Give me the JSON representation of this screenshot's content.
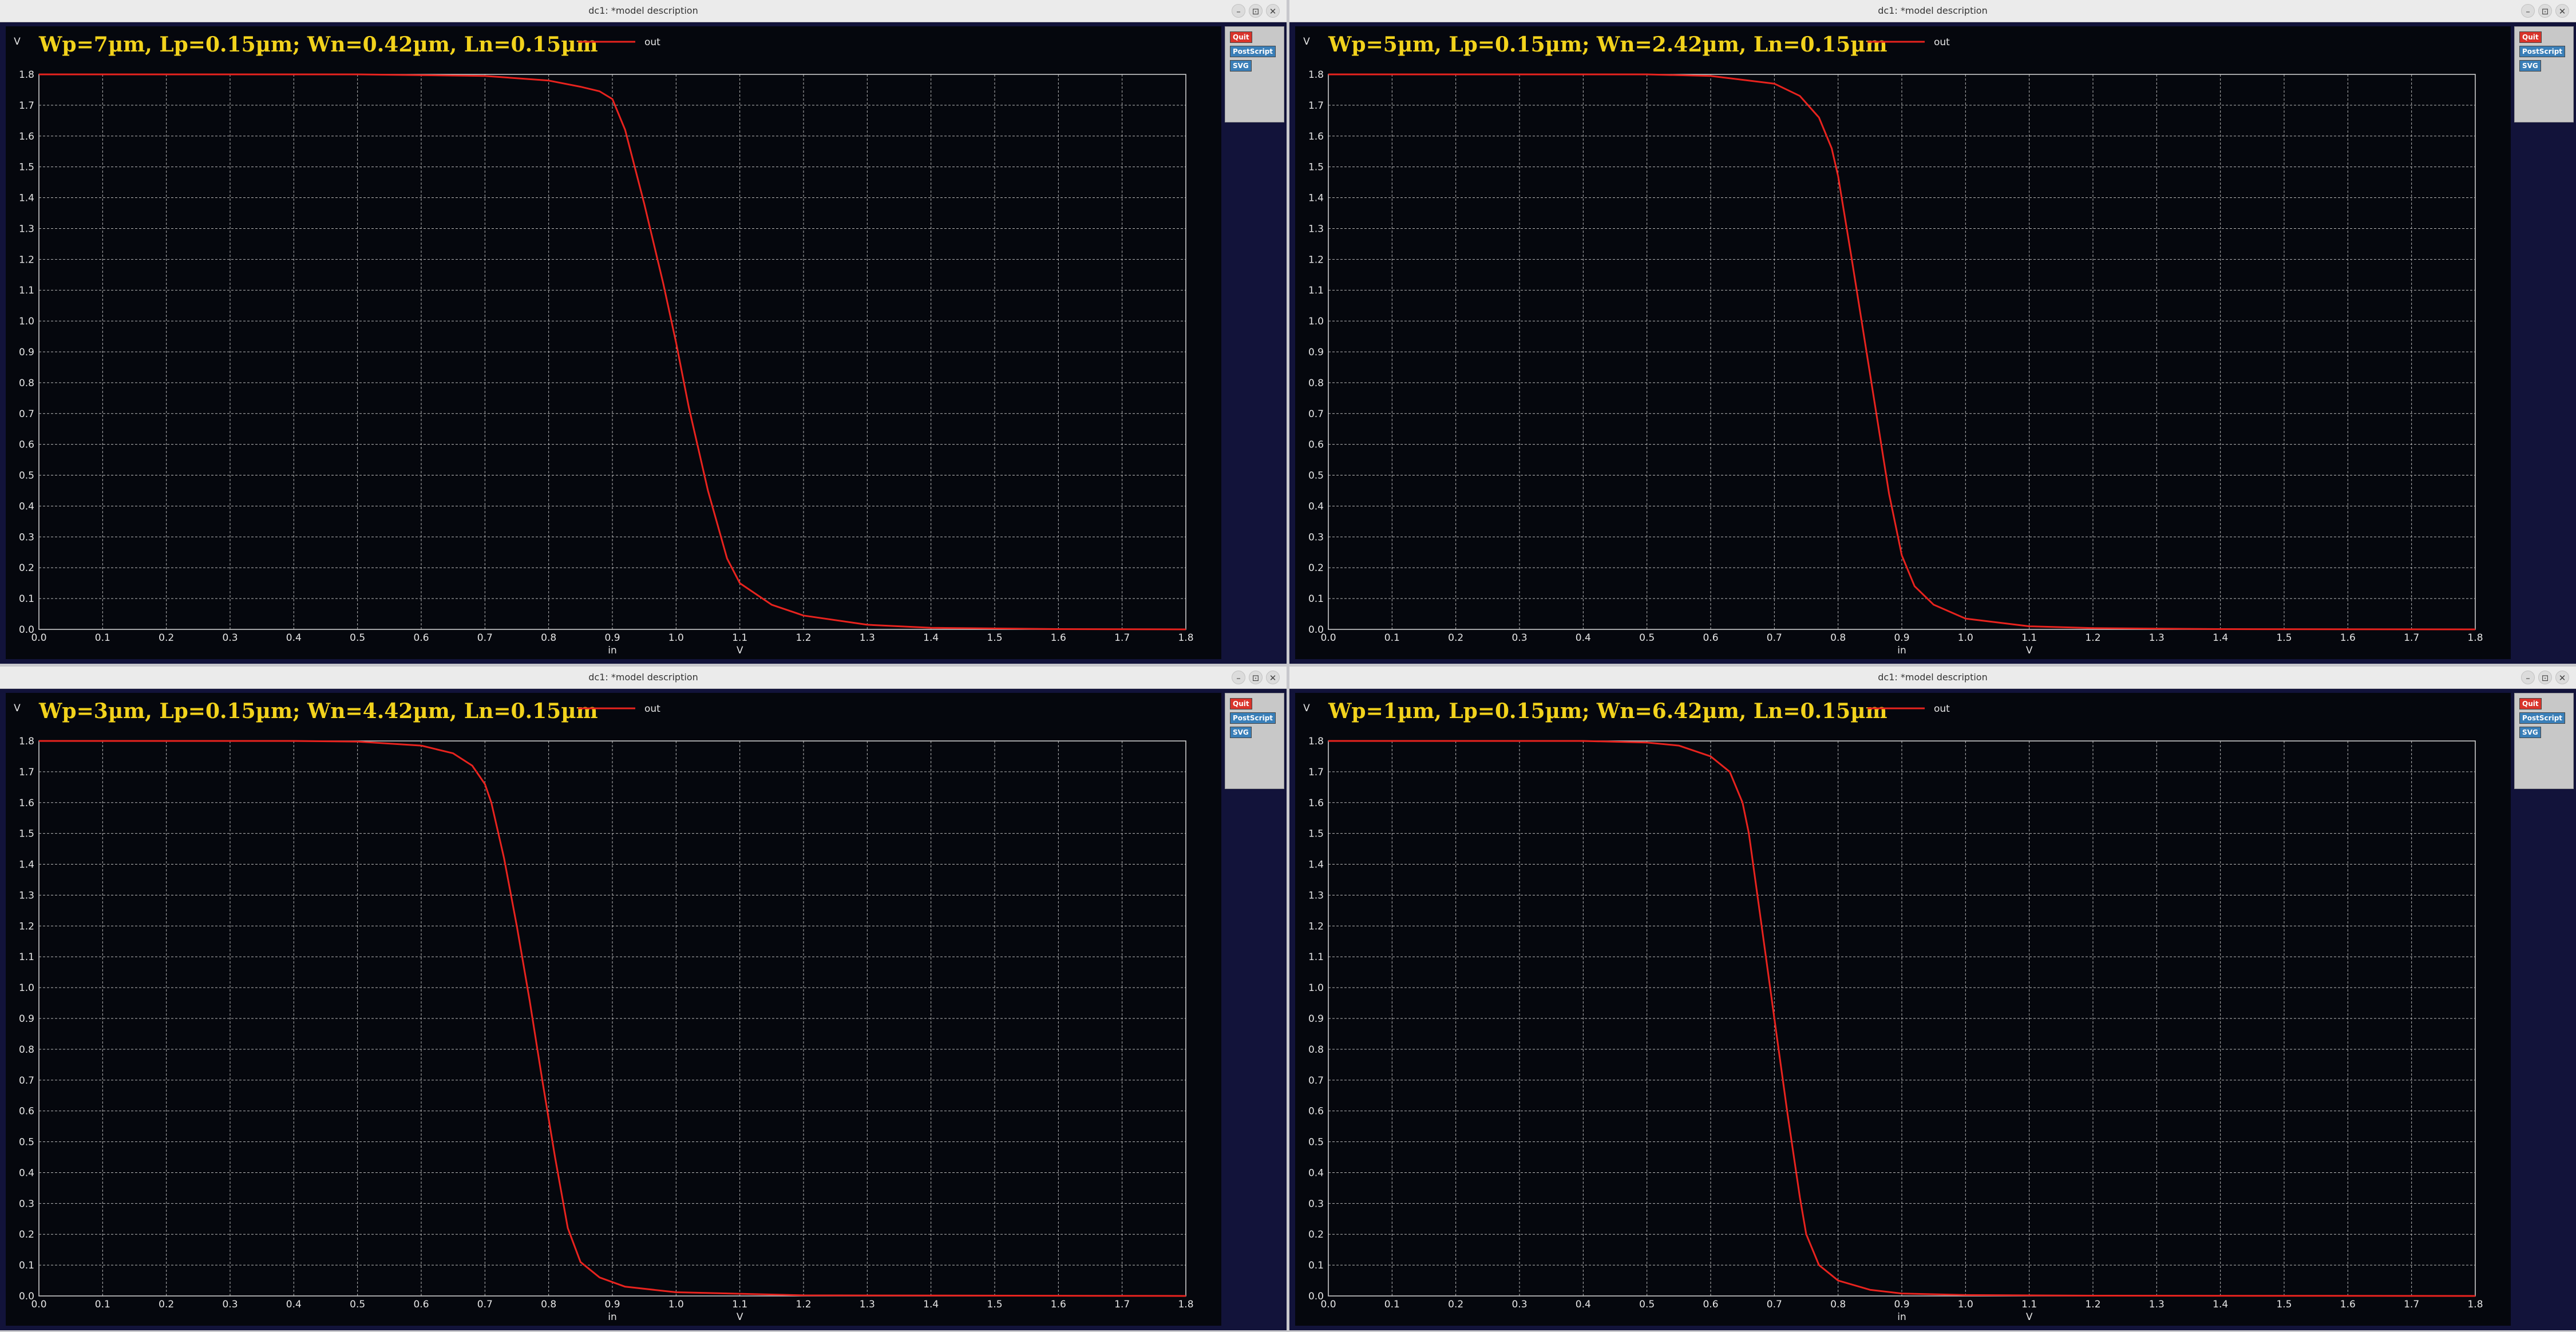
{
  "windows": [
    {
      "window_title": "dc1: *model description",
      "buttons": {
        "quit": "Quit",
        "postscript": "PostScript",
        "svg": "SVG"
      },
      "controls": {
        "minimize": "–",
        "maximize": "⊡",
        "close": "✕"
      },
      "chart_data": {
        "type": "line",
        "title": "Wp=7µm, Lp=0.15µm; Wn=0.42µm, Ln=0.15µm",
        "xlabel": "in",
        "xunit": "V",
        "yunit": "V",
        "xlim": [
          0,
          1.8
        ],
        "ylim": [
          0,
          1.8
        ],
        "xticks": [
          "0.0",
          "0.1",
          "0.2",
          "0.3",
          "0.4",
          "0.5",
          "0.6",
          "0.7",
          "0.8",
          "0.9",
          "1.0",
          "1.1",
          "1.2",
          "1.3",
          "1.4",
          "1.5",
          "1.6",
          "1.7",
          "1.8"
        ],
        "yticks": [
          "0.0",
          "0.1",
          "0.2",
          "0.3",
          "0.4",
          "0.5",
          "0.6",
          "0.7",
          "0.8",
          "0.9",
          "1.0",
          "1.1",
          "1.2",
          "1.3",
          "1.4",
          "1.5",
          "1.6",
          "1.7",
          "1.8"
        ],
        "grid": true,
        "legend_position": "top-center",
        "series": [
          {
            "name": "out",
            "color": "#e8231e",
            "x": [
              0.0,
              0.5,
              0.7,
              0.8,
              0.85,
              0.88,
              0.9,
              0.92,
              0.95,
              0.98,
              1.0,
              1.02,
              1.05,
              1.08,
              1.1,
              1.15,
              1.2,
              1.3,
              1.4,
              1.6,
              1.8
            ],
            "y": [
              1.8,
              1.8,
              1.795,
              1.78,
              1.76,
              1.745,
              1.72,
              1.62,
              1.38,
              1.12,
              0.93,
              0.72,
              0.45,
              0.23,
              0.15,
              0.08,
              0.045,
              0.015,
              0.005,
              0.001,
              0.0
            ]
          }
        ]
      }
    },
    {
      "window_title": "dc1: *model description",
      "buttons": {
        "quit": "Quit",
        "postscript": "PostScript",
        "svg": "SVG"
      },
      "controls": {
        "minimize": "–",
        "maximize": "⊡",
        "close": "✕"
      },
      "chart_data": {
        "type": "line",
        "title": "Wp=5µm, Lp=0.15µm; Wn=2.42µm, Ln=0.15µm",
        "xlabel": "in",
        "xunit": "V",
        "yunit": "V",
        "xlim": [
          0,
          1.8
        ],
        "ylim": [
          0,
          1.8
        ],
        "xticks": [
          "0.0",
          "0.1",
          "0.2",
          "0.3",
          "0.4",
          "0.5",
          "0.6",
          "0.7",
          "0.8",
          "0.9",
          "1.0",
          "1.1",
          "1.2",
          "1.3",
          "1.4",
          "1.5",
          "1.6",
          "1.7",
          "1.8"
        ],
        "yticks": [
          "0.0",
          "0.1",
          "0.2",
          "0.3",
          "0.4",
          "0.5",
          "0.6",
          "0.7",
          "0.8",
          "0.9",
          "1.0",
          "1.1",
          "1.2",
          "1.3",
          "1.4",
          "1.5",
          "1.6",
          "1.7",
          "1.8"
        ],
        "grid": true,
        "legend_position": "top-center",
        "series": [
          {
            "name": "out",
            "color": "#e8231e",
            "x": [
              0.0,
              0.5,
              0.6,
              0.7,
              0.74,
              0.77,
              0.79,
              0.8,
              0.82,
              0.84,
              0.86,
              0.88,
              0.9,
              0.92,
              0.95,
              1.0,
              1.1,
              1.2,
              1.4,
              1.8
            ],
            "y": [
              1.8,
              1.8,
              1.795,
              1.77,
              1.73,
              1.66,
              1.56,
              1.47,
              1.22,
              0.96,
              0.7,
              0.44,
              0.24,
              0.14,
              0.08,
              0.035,
              0.01,
              0.004,
              0.001,
              0.0
            ]
          }
        ]
      }
    },
    {
      "window_title": "dc1: *model description",
      "buttons": {
        "quit": "Quit",
        "postscript": "PostScript",
        "svg": "SVG"
      },
      "controls": {
        "minimize": "–",
        "maximize": "⊡",
        "close": "✕"
      },
      "chart_data": {
        "type": "line",
        "title": "Wp=3µm, Lp=0.15µm; Wn=4.42µm, Ln=0.15µm",
        "xlabel": "in",
        "xunit": "V",
        "yunit": "V",
        "xlim": [
          0,
          1.8
        ],
        "ylim": [
          0,
          1.8
        ],
        "xticks": [
          "0.0",
          "0.1",
          "0.2",
          "0.3",
          "0.4",
          "0.5",
          "0.6",
          "0.7",
          "0.8",
          "0.9",
          "1.0",
          "1.1",
          "1.2",
          "1.3",
          "1.4",
          "1.5",
          "1.6",
          "1.7",
          "1.8"
        ],
        "yticks": [
          "0.0",
          "0.1",
          "0.2",
          "0.3",
          "0.4",
          "0.5",
          "0.6",
          "0.7",
          "0.8",
          "0.9",
          "1.0",
          "1.1",
          "1.2",
          "1.3",
          "1.4",
          "1.5",
          "1.6",
          "1.7",
          "1.8"
        ],
        "grid": true,
        "legend_position": "top-center",
        "series": [
          {
            "name": "out",
            "color": "#e8231e",
            "x": [
              0.0,
              0.4,
              0.5,
              0.6,
              0.65,
              0.68,
              0.7,
              0.71,
              0.73,
              0.75,
              0.77,
              0.79,
              0.81,
              0.83,
              0.85,
              0.88,
              0.92,
              1.0,
              1.2,
              1.8
            ],
            "y": [
              1.8,
              1.8,
              1.798,
              1.785,
              1.76,
              1.72,
              1.66,
              1.6,
              1.42,
              1.2,
              0.96,
              0.7,
              0.45,
              0.22,
              0.11,
              0.06,
              0.03,
              0.012,
              0.002,
              0.0
            ]
          }
        ]
      }
    },
    {
      "window_title": "dc1: *model description",
      "buttons": {
        "quit": "Quit",
        "postscript": "PostScript",
        "svg": "SVG"
      },
      "controls": {
        "minimize": "–",
        "maximize": "⊡",
        "close": "✕"
      },
      "chart_data": {
        "type": "line",
        "title": "Wp=1µm, Lp=0.15µm; Wn=6.42µm, Ln=0.15µm",
        "xlabel": "in",
        "xunit": "V",
        "yunit": "V",
        "xlim": [
          0,
          1.8
        ],
        "ylim": [
          0,
          1.8
        ],
        "xticks": [
          "0.0",
          "0.1",
          "0.2",
          "0.3",
          "0.4",
          "0.5",
          "0.6",
          "0.7",
          "0.8",
          "0.9",
          "1.0",
          "1.1",
          "1.2",
          "1.3",
          "1.4",
          "1.5",
          "1.6",
          "1.7",
          "1.8"
        ],
        "yticks": [
          "0.0",
          "0.1",
          "0.2",
          "0.3",
          "0.4",
          "0.5",
          "0.6",
          "0.7",
          "0.8",
          "0.9",
          "1.0",
          "1.1",
          "1.2",
          "1.3",
          "1.4",
          "1.5",
          "1.6",
          "1.7",
          "1.8"
        ],
        "grid": true,
        "legend_position": "top-center",
        "series": [
          {
            "name": "out",
            "color": "#e8231e",
            "x": [
              0.0,
              0.4,
              0.5,
              0.55,
              0.6,
              0.63,
              0.65,
              0.66,
              0.68,
              0.7,
              0.72,
              0.74,
              0.75,
              0.77,
              0.8,
              0.85,
              0.9,
              1.0,
              1.2,
              1.8
            ],
            "y": [
              1.8,
              1.8,
              1.795,
              1.785,
              1.75,
              1.7,
              1.6,
              1.5,
              1.2,
              0.9,
              0.6,
              0.32,
              0.2,
              0.1,
              0.05,
              0.02,
              0.008,
              0.003,
              0.001,
              0.0
            ]
          }
        ]
      }
    }
  ]
}
